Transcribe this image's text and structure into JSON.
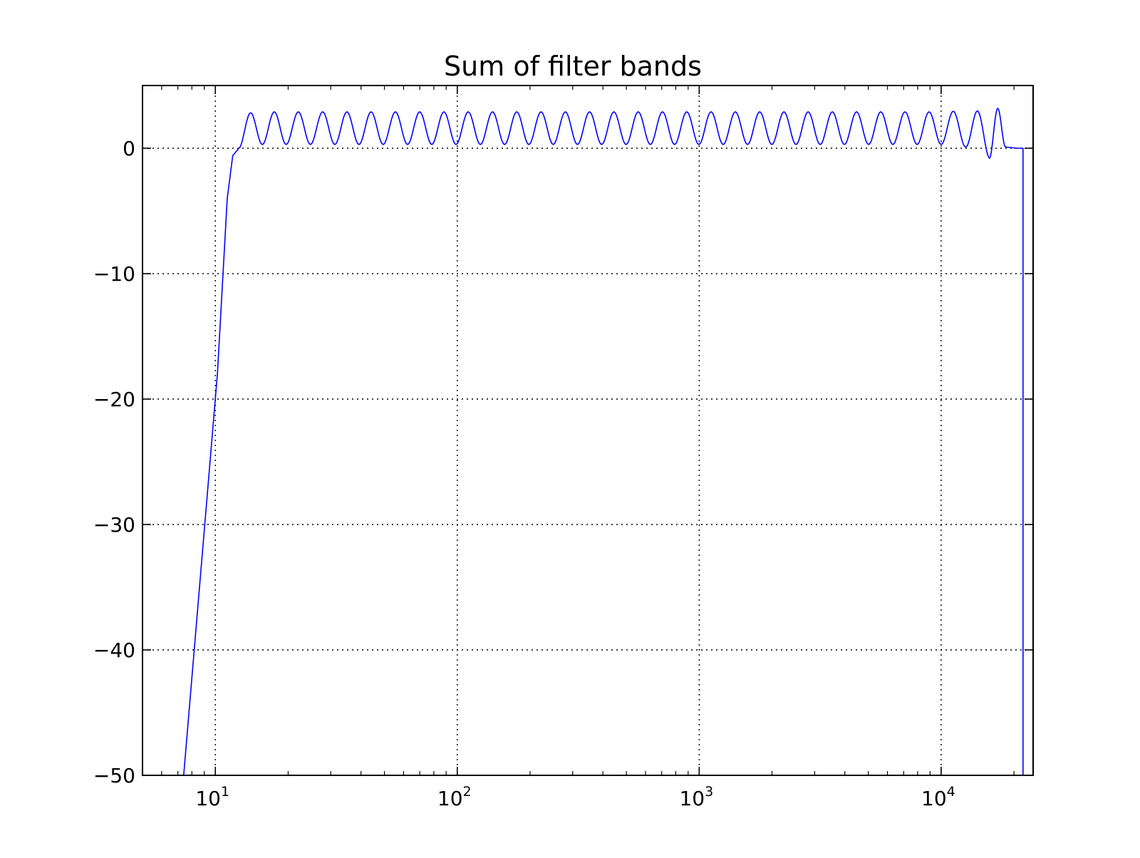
{
  "chart_data": {
    "type": "line",
    "title": "Sum of filter bands",
    "xlabel": "",
    "ylabel": "",
    "xscale": "log",
    "xlim": [
      5,
      24000
    ],
    "ylim": [
      -50,
      5
    ],
    "grid": true,
    "legend": "none",
    "x_major_ticks": [
      {
        "value": 10,
        "base": "10",
        "exp": "1"
      },
      {
        "value": 100,
        "base": "10",
        "exp": "2"
      },
      {
        "value": 1000,
        "base": "10",
        "exp": "3"
      },
      {
        "value": 10000,
        "base": "10",
        "exp": "4"
      }
    ],
    "y_ticks": [
      {
        "value": 0,
        "label": "0"
      },
      {
        "value": -10,
        "label": "−10"
      },
      {
        "value": -20,
        "label": "−20"
      },
      {
        "value": -30,
        "label": "−30"
      },
      {
        "value": -40,
        "label": "−40"
      },
      {
        "value": -50,
        "label": "−50"
      }
    ],
    "series": [
      {
        "color": "#0000ff",
        "description_points": [
          [
            7.4,
            -50
          ],
          [
            10.2,
            -18
          ],
          [
            11.2,
            -4
          ],
          [
            11.8,
            -0.6
          ],
          [
            12.5,
            0
          ]
        ],
        "ripple": {
          "start_x": 12.5,
          "end_x": 18500,
          "peaks_x": [
            14.0,
            17.5,
            22.0,
            27.8,
            35.0,
            44.0,
            55.5,
            70.0,
            88.0,
            111,
            140,
            176,
            222,
            280,
            352,
            444,
            560,
            705,
            888,
            1120,
            1410,
            1780,
            2240,
            2820,
            3550,
            4470,
            5630,
            7090,
            8930,
            11200,
            14200,
            17700
          ],
          "peak_y": [
            2.9,
            2.9,
            2.9,
            2.9,
            2.9,
            2.9,
            2.9,
            2.9,
            2.9,
            2.9,
            2.9,
            2.9,
            2.9,
            2.9,
            2.9,
            2.9,
            2.9,
            2.9,
            2.9,
            2.9,
            2.9,
            2.9,
            2.9,
            2.9,
            2.9,
            2.9,
            2.9,
            2.9,
            2.9,
            3.0,
            3.2,
            3.4
          ],
          "valley_y": [
            0.3,
            0.3,
            0.3,
            0.3,
            0.3,
            0.3,
            0.3,
            0.3,
            0.3,
            0.3,
            0.3,
            0.3,
            0.3,
            0.3,
            0.3,
            0.3,
            0.3,
            0.3,
            0.3,
            0.3,
            0.3,
            0.3,
            0.3,
            0.3,
            0.3,
            0.3,
            0.3,
            0.3,
            0.3,
            0.1,
            -0.8,
            0.1
          ]
        },
        "tail_points": [
          [
            18500,
            0.1
          ],
          [
            20500,
            0
          ],
          [
            21800,
            0
          ],
          [
            21800,
            -50
          ]
        ]
      }
    ]
  }
}
